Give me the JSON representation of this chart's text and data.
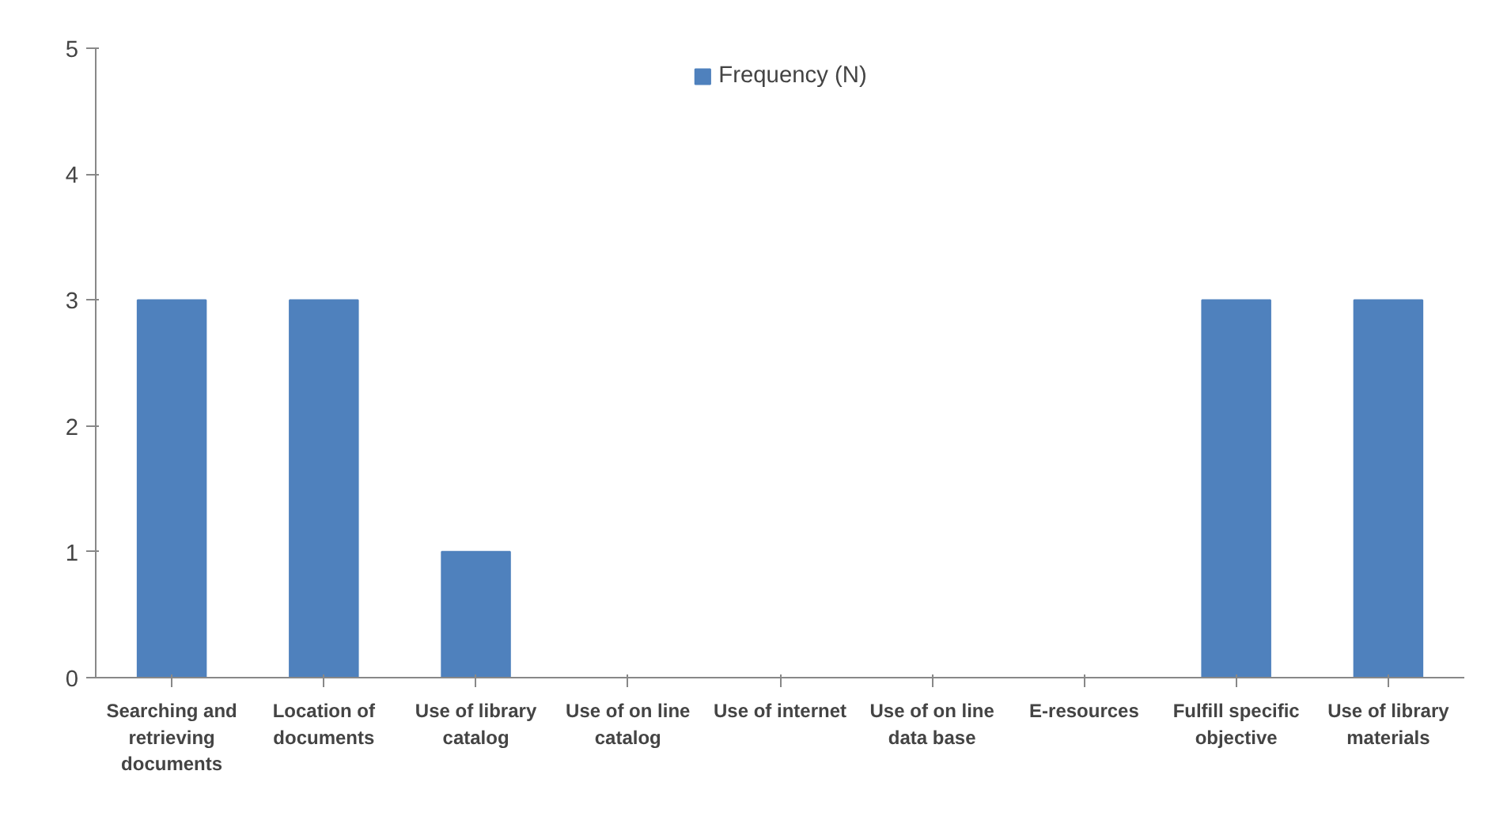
{
  "chart_data": {
    "type": "bar",
    "categories": [
      "Searching and retrieving documents",
      "Location of documents",
      "Use of library catalog",
      "Use of on line catalog",
      "Use of internet",
      "Use of on line data base",
      "E-resources",
      "Fulfill specific objective",
      "Use of library materials"
    ],
    "series": [
      {
        "name": "Frequency (N)",
        "color": "#4f81bd",
        "values": [
          3,
          3,
          1,
          0,
          0,
          0,
          0,
          3,
          3
        ]
      }
    ],
    "ylim": [
      0,
      5
    ],
    "yticks": [
      0,
      1,
      2,
      3,
      4,
      5
    ],
    "grid": false,
    "legend": "top"
  }
}
